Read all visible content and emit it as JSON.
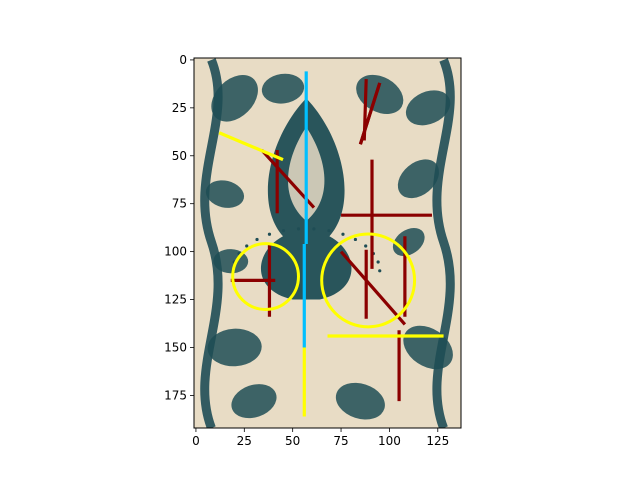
{
  "chart_data": {
    "type": "image-overlay",
    "title": "",
    "xlabel": "",
    "ylabel": "",
    "xlim": [
      -1,
      137
    ],
    "ylim": [
      192,
      -1
    ],
    "xticks": [
      0,
      25,
      50,
      75,
      100,
      125
    ],
    "yticks": [
      0,
      25,
      50,
      75,
      100,
      125,
      150,
      175
    ],
    "xtick_labels": [
      "0",
      "25",
      "50",
      "75",
      "100",
      "125"
    ],
    "ytick_labels": [
      "0",
      "25",
      "50",
      "75",
      "100",
      "125",
      "150",
      "175"
    ],
    "image": {
      "description_key": "tile-pattern",
      "base_color": "#e8dcc5",
      "ink_color": "#1f4d55"
    },
    "colors": {
      "dark_red": "#8b0000",
      "yellow": "#ffff00",
      "cyan": "#00bfff"
    },
    "segments": [
      {
        "color": "#8b0000",
        "x1": 85,
        "y1": 44,
        "x2": 95,
        "y2": 12
      },
      {
        "color": "#8b0000",
        "x1": 85,
        "y1": 44,
        "x2": 95,
        "y2": 12
      },
      {
        "color": "#8b0000",
        "x1": 87,
        "y1": 42,
        "x2": 88,
        "y2": 10
      },
      {
        "color": "#8b0000",
        "x1": 34,
        "y1": 47,
        "x2": 61,
        "y2": 77
      },
      {
        "color": "#8b0000",
        "x1": 42,
        "y1": 47,
        "x2": 42,
        "y2": 80
      },
      {
        "color": "#8b0000",
        "x1": 75,
        "y1": 81,
        "x2": 122,
        "y2": 81
      },
      {
        "color": "#8b0000",
        "x1": 91,
        "y1": 52,
        "x2": 91,
        "y2": 109
      },
      {
        "color": "#8b0000",
        "x1": 38,
        "y1": 96,
        "x2": 38,
        "y2": 134
      },
      {
        "color": "#8b0000",
        "x1": 18,
        "y1": 115,
        "x2": 41,
        "y2": 115
      },
      {
        "color": "#8b0000",
        "x1": 75,
        "y1": 100,
        "x2": 108,
        "y2": 138
      },
      {
        "color": "#8b0000",
        "x1": 88,
        "y1": 99,
        "x2": 88,
        "y2": 135
      },
      {
        "color": "#8b0000",
        "x1": 108,
        "y1": 92,
        "x2": 108,
        "y2": 134
      },
      {
        "color": "#8b0000",
        "x1": 105,
        "y1": 141,
        "x2": 105,
        "y2": 178
      },
      {
        "color": "#ffff00",
        "x1": 12,
        "y1": 38,
        "x2": 45,
        "y2": 52
      },
      {
        "color": "#ffff00",
        "x1": 68,
        "y1": 144,
        "x2": 128,
        "y2": 144
      },
      {
        "color": "#ffff00",
        "x1": 56,
        "y1": 150,
        "x2": 56,
        "y2": 186
      },
      {
        "color": "#00bfff",
        "x1": 57,
        "y1": 6,
        "x2": 57,
        "y2": 96
      },
      {
        "color": "#00bfff",
        "x1": 56,
        "y1": 96,
        "x2": 56,
        "y2": 150
      }
    ],
    "circles": [
      {
        "color": "#ffff00",
        "cx": 36,
        "cy": 113,
        "r": 17
      },
      {
        "color": "#ffff00",
        "cx": 89,
        "cy": 115,
        "r": 24
      }
    ]
  }
}
